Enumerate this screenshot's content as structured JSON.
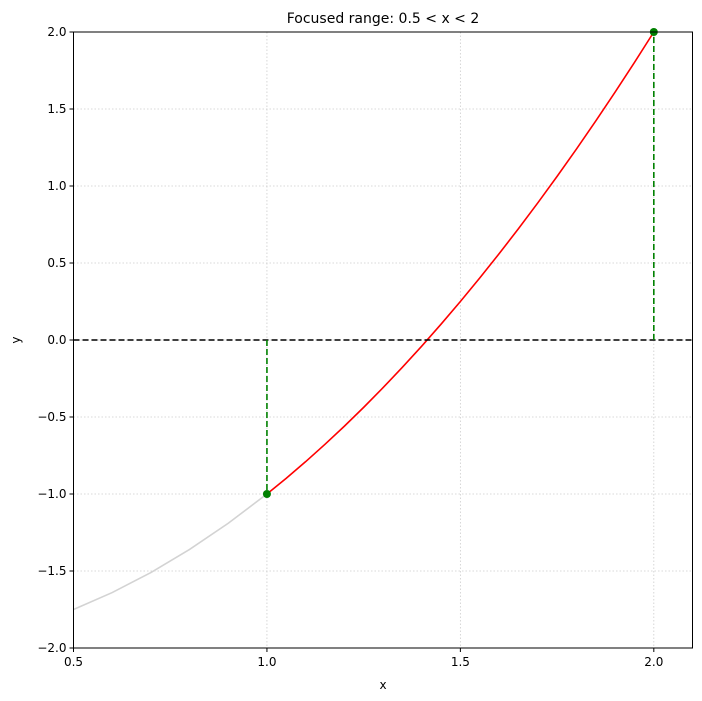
{
  "chart_data": {
    "type": "line",
    "title": "Focused range: 0.5 < x < 2",
    "xlabel": "x",
    "ylabel": "y",
    "xlim": [
      0.5,
      2.1
    ],
    "ylim": [
      -2,
      2
    ],
    "xticks": [
      0.5,
      {
        "value": 1,
        "label": "1.0"
      },
      1.5,
      {
        "value": 2,
        "label": "2.0"
      }
    ],
    "yticks": [
      {
        "value": -2,
        "label": "−2.0"
      },
      {
        "value": -1.5,
        "label": "−1.5"
      },
      {
        "value": -1,
        "label": "−1.0"
      },
      {
        "value": -0.5,
        "label": "−0.5"
      },
      {
        "value": 0,
        "label": "0.0"
      },
      0.5,
      {
        "value": 1,
        "label": "1.0"
      },
      1.5,
      {
        "value": 2,
        "label": "2.0"
      }
    ],
    "grid": true,
    "series": [
      {
        "color": "#d3d3d3",
        "x": [
          0.5,
          0.6,
          0.7,
          0.8,
          0.9,
          1.0
        ],
        "values": [
          -1.75,
          -1.64,
          -1.51,
          -1.36,
          -1.19,
          -1
        ]
      },
      {
        "color": "#ff0000",
        "x": [
          1,
          1.05,
          1.1,
          1.15,
          1.2,
          1.25,
          1.3,
          1.35,
          1.4,
          1.45,
          1.5,
          1.55,
          1.6,
          1.65,
          1.7,
          1.75,
          1.8,
          1.85,
          1.9,
          1.95,
          2
        ],
        "values": [
          -1,
          -0.8975,
          -0.79,
          -0.6775,
          -0.56,
          -0.4375,
          -0.31,
          -0.1775,
          -0.04,
          0.1025,
          0.25,
          0.4025,
          0.56,
          0.7225,
          0.89,
          1.0625,
          1.24,
          1.4225,
          1.61,
          1.8025,
          2
        ]
      }
    ],
    "points": {
      "color": "#008000",
      "x": [
        1,
        2
      ],
      "values": [
        -1,
        2
      ]
    },
    "hline": {
      "value": 0,
      "color": "#000000"
    }
  }
}
